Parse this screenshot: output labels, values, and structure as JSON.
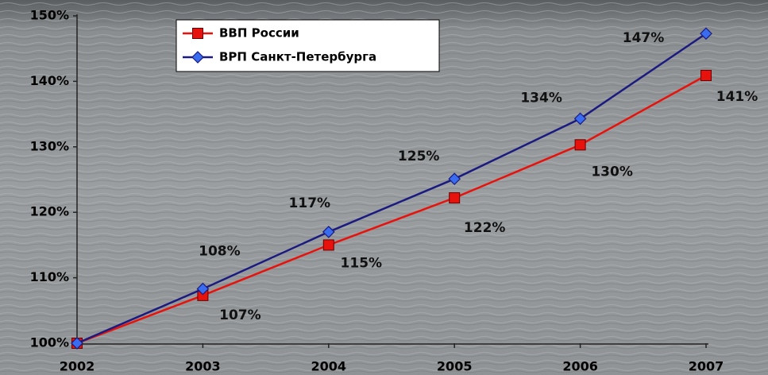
{
  "chart_data": {
    "type": "line",
    "categories": [
      "2002",
      "2003",
      "2004",
      "2005",
      "2006",
      "2007"
    ],
    "series": [
      {
        "name": "ВВП России",
        "color": "#e8120c",
        "marker": "square",
        "values": [
          100,
          107.3,
          115.0,
          122.2,
          130.3,
          140.9
        ],
        "value_labels": [
          null,
          "107%",
          "115%",
          "122%",
          "130%",
          "141%"
        ]
      },
      {
        "name": "ВРП Санкт-Петербурга",
        "color": "#1a1a80",
        "marker": "diamond",
        "values": [
          100,
          108.3,
          117.0,
          125.1,
          134.3,
          147.3
        ],
        "value_labels": [
          null,
          "108%",
          "117%",
          "125%",
          "134%",
          "147%"
        ]
      }
    ],
    "ylim": [
      100,
      150
    ],
    "yticks": [
      {
        "value": 100,
        "label": "100%"
      },
      {
        "value": 110,
        "label": "110%"
      },
      {
        "value": 120,
        "label": "120%"
      },
      {
        "value": 130,
        "label": "130%"
      },
      {
        "value": 140,
        "label": "140%"
      },
      {
        "value": 150,
        "label": "150%"
      }
    ],
    "grid": false,
    "legend": "top-left"
  }
}
